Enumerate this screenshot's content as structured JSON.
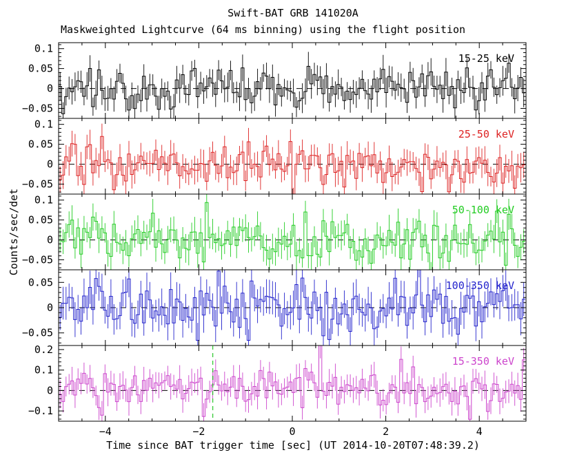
{
  "title": "Swift-BAT GRB 141020A",
  "subtitle": "Maskweighted Lightcurve (64 ms binning) using the flight position",
  "xlabel": "Time since BAT trigger time [sec] (UT 2014-10-20T07:48:39.2)",
  "ylabel": "Counts/sec/det",
  "chart_data": {
    "type": "line",
    "style": "stepped histogram lightcurves with error bars, 5 stacked panels",
    "x_range": [
      -5,
      5
    ],
    "bin_seconds": 0.064,
    "x_ticks": {
      "major": [
        -4,
        -2,
        0,
        2,
        4
      ],
      "labels": [
        "−4",
        "−2",
        "0",
        "2",
        "4"
      ],
      "minor_step": 0.5
    },
    "zero_line": {
      "value": 0,
      "style": "dashed",
      "color": "#000000"
    },
    "trigger_line": {
      "x": -1.7,
      "panel": 4,
      "color": "#00bb00",
      "style": "dashed"
    },
    "series": [
      {
        "label": "15-25 keV",
        "color": "#000000",
        "ylim": [
          -0.075,
          0.115
        ],
        "yticks": [
          0.1,
          0.05,
          0,
          -0.05
        ],
        "ytick_labels": [
          "0.1",
          "0.05",
          "0",
          "−0.05"
        ],
        "yminor_step": 0.01,
        "mean": 0,
        "sigma": 0.027,
        "spike_prob": 0.02,
        "spike_amp": 0.05,
        "seed": 101
      },
      {
        "label": "25-50 keV",
        "color": "#dd2222",
        "ylim": [
          -0.075,
          0.115
        ],
        "yticks": [
          0.1,
          0.05,
          0,
          -0.05
        ],
        "ytick_labels": [
          "0.1",
          "0.05",
          "0",
          "−0.05"
        ],
        "yminor_step": 0.01,
        "mean": 0,
        "sigma": 0.027,
        "spike_prob": 0.02,
        "spike_amp": 0.05,
        "seed": 202
      },
      {
        "label": "50-100 keV",
        "color": "#22cc22",
        "ylim": [
          -0.075,
          0.115
        ],
        "yticks": [
          0.1,
          0.05,
          0,
          -0.05
        ],
        "ytick_labels": [
          "0.1",
          "0.05",
          "0",
          "−0.05"
        ],
        "yminor_step": 0.01,
        "mean": 0,
        "sigma": 0.028,
        "spike_prob": 0.03,
        "spike_amp": 0.06,
        "seed": 303
      },
      {
        "label": "100-350 keV",
        "color": "#2222cc",
        "ylim": [
          -0.075,
          0.075
        ],
        "yticks": [
          0.05,
          0,
          -0.05
        ],
        "ytick_labels": [
          "0.05",
          "0",
          "−0.05"
        ],
        "yminor_step": 0.01,
        "mean": 0,
        "sigma": 0.026,
        "spike_prob": 0.02,
        "spike_amp": 0.04,
        "seed": 404
      },
      {
        "label": "15-350 keV",
        "color": "#cc44cc",
        "ylim": [
          -0.15,
          0.22
        ],
        "yticks": [
          0.2,
          0.1,
          0,
          -0.1
        ],
        "ytick_labels": [
          "0.2",
          "0.1",
          "0",
          "−0.1"
        ],
        "yminor_step": 0.02,
        "mean": 0.005,
        "sigma": 0.05,
        "spike_prob": 0.05,
        "spike_amp": 0.1,
        "seed": 505
      }
    ]
  }
}
